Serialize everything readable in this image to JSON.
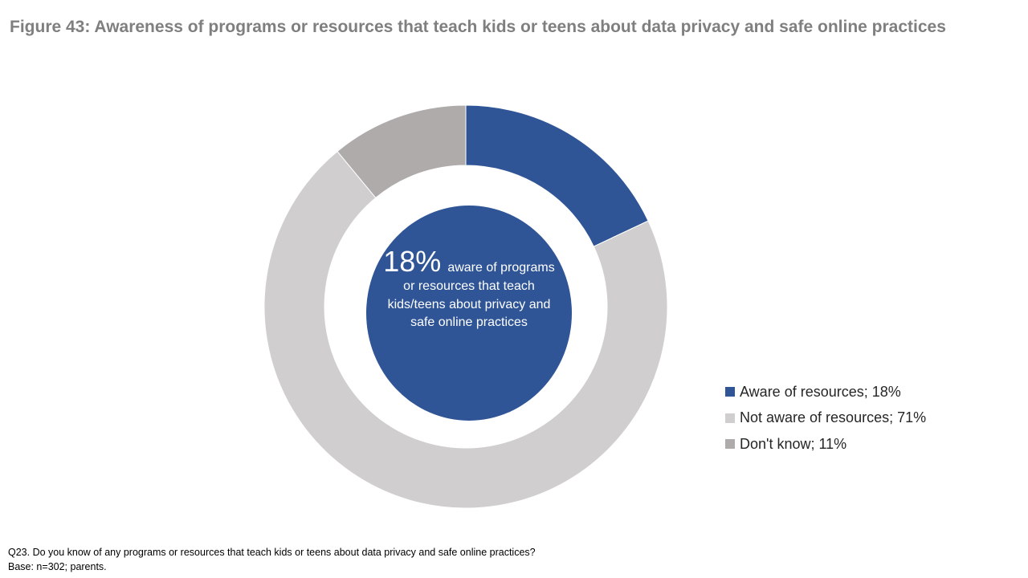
{
  "title": "Figure 43: Awareness of programs or resources that teach kids or teens about data privacy and safe online practices",
  "chart_data": {
    "type": "pie",
    "subtype": "donut",
    "title": "Figure 43: Awareness of programs or resources that teach kids or teens about data privacy and safe online practices",
    "slices": [
      {
        "label": "Aware of resources; 18%",
        "name": "Aware of resources",
        "value": 18,
        "color": "#2f5597"
      },
      {
        "label": "Not aware of resources; 71%",
        "name": "Not aware of resources",
        "value": 71,
        "color": "#d0cecf"
      },
      {
        "label": "Don't know; 11%",
        "name": "Don't know",
        "value": 11,
        "color": "#afabab"
      }
    ],
    "legend_position": "right",
    "center": {
      "big": "18%",
      "text": "aware of programs or resources that teach kids/teens about privacy and safe online practices",
      "color": "#2f5597"
    }
  },
  "footnote": {
    "question": "Q23. Do you know of any programs or resources that teach kids or teens about data privacy and safe online practices?",
    "base": "Base: n=302; parents."
  }
}
